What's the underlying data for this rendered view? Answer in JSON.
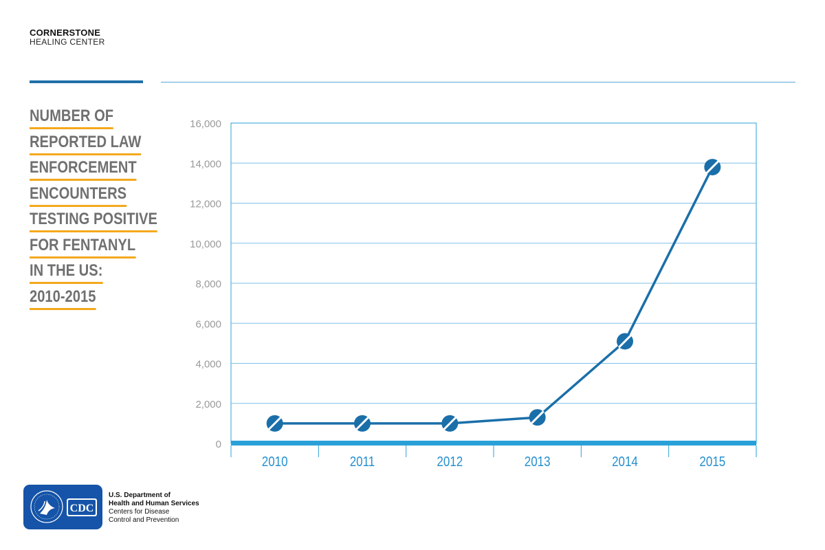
{
  "brand": {
    "name": "CORNERSTONE",
    "sub": "HEALING CENTER"
  },
  "title_lines": [
    "NUMBER OF",
    "REPORTED LAW",
    "ENFORCEMENT",
    "ENCOUNTERS",
    "TESTING POSITIVE",
    "FOR FENTANYL",
    "IN THE US:",
    "2010-2015"
  ],
  "colors": {
    "line": "#1a6fa9",
    "accent_underline": "#f4a81d",
    "axis_blue": "#2aa0d8",
    "grid": "#7fc0e6",
    "tick_label_y": "#9a9a9a",
    "tick_label_x": "#2590cf",
    "title_text": "#707070"
  },
  "chart_data": {
    "type": "line",
    "categories": [
      "2010",
      "2011",
      "2012",
      "2013",
      "2014",
      "2015"
    ],
    "series": [
      {
        "values": [
          1000,
          1000,
          1000,
          1300,
          5100,
          13800
        ]
      }
    ],
    "ylim": [
      0,
      16000
    ],
    "yticks": [
      0,
      2000,
      4000,
      6000,
      8000,
      10000,
      12000,
      14000,
      16000
    ],
    "ytick_labels": [
      "0",
      "2,000",
      "4,000",
      "6,000",
      "8,000",
      "10,000",
      "12,000",
      "14,000",
      "16,000"
    ],
    "grid": true,
    "markers": "pill"
  },
  "footer": {
    "badge_icon": "hhs-cdc-logo",
    "badge_text": "CDC",
    "line1": "U.S. Department of",
    "line2": "Health and Human Services",
    "line3": "Centers for Disease",
    "line4": "Control and Prevention"
  }
}
